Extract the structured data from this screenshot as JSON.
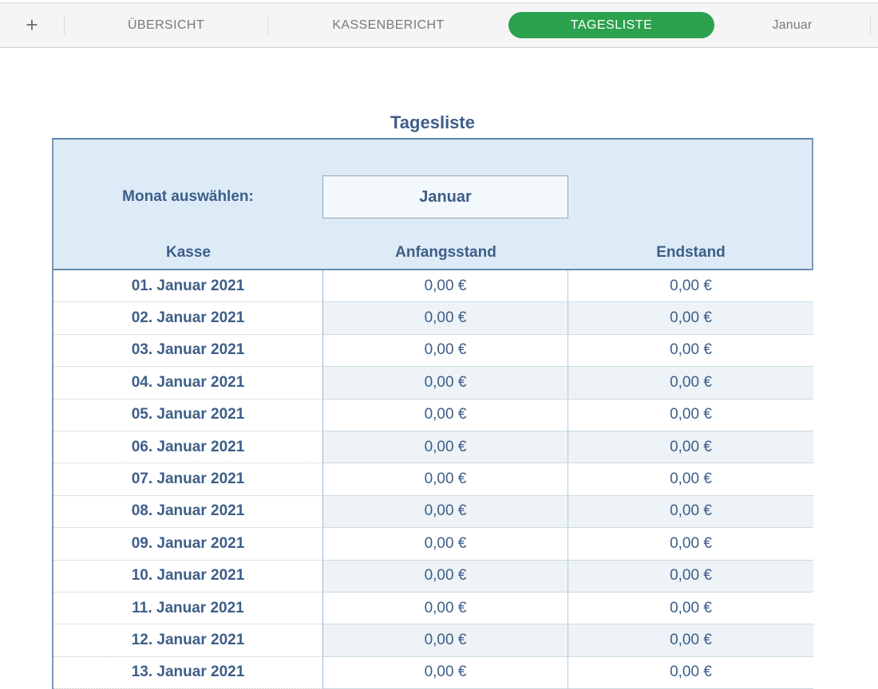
{
  "tab_bar": {
    "add_button": "+",
    "tabs": [
      {
        "label": "ÜBERSICHT",
        "active": false
      },
      {
        "label": "KASSENBERICHT",
        "active": false
      },
      {
        "label": "TAGESLISTE",
        "active": true
      },
      {
        "label": "Januar",
        "active": false
      }
    ]
  },
  "sheet": {
    "title": "Tagesliste",
    "month_select": {
      "label": "Monat auswählen:",
      "value": "Januar"
    },
    "table": {
      "columns": [
        "Kasse",
        "Anfangsstand",
        "Endstand"
      ],
      "rows": [
        {
          "date": "01. Januar 2021",
          "anfangsstand": "0,00 €",
          "endstand": "0,00 €"
        },
        {
          "date": "02. Januar 2021",
          "anfangsstand": "0,00 €",
          "endstand": "0,00 €"
        },
        {
          "date": "03. Januar 2021",
          "anfangsstand": "0,00 €",
          "endstand": "0,00 €"
        },
        {
          "date": "04. Januar 2021",
          "anfangsstand": "0,00 €",
          "endstand": "0,00 €"
        },
        {
          "date": "05. Januar 2021",
          "anfangsstand": "0,00 €",
          "endstand": "0,00 €"
        },
        {
          "date": "06. Januar 2021",
          "anfangsstand": "0,00 €",
          "endstand": "0,00 €"
        },
        {
          "date": "07. Januar 2021",
          "anfangsstand": "0,00 €",
          "endstand": "0,00 €"
        },
        {
          "date": "08. Januar 2021",
          "anfangsstand": "0,00 €",
          "endstand": "0,00 €"
        },
        {
          "date": "09. Januar 2021",
          "anfangsstand": "0,00 €",
          "endstand": "0,00 €"
        },
        {
          "date": "10. Januar 2021",
          "anfangsstand": "0,00 €",
          "endstand": "0,00 €"
        },
        {
          "date": "11. Januar 2021",
          "anfangsstand": "0,00 €",
          "endstand": "0,00 €"
        },
        {
          "date": "12. Januar 2021",
          "anfangsstand": "0,00 €",
          "endstand": "0,00 €"
        },
        {
          "date": "13. Januar 2021",
          "anfangsstand": "0,00 €",
          "endstand": "0,00 €"
        }
      ]
    }
  },
  "colors": {
    "active_tab_green": "#2ca24e",
    "header_blue_bg": "#dcebf6",
    "text_blue": "#3d5e88",
    "table_border": "#7b99b8",
    "alt_row_bg": "#edf3f6"
  }
}
